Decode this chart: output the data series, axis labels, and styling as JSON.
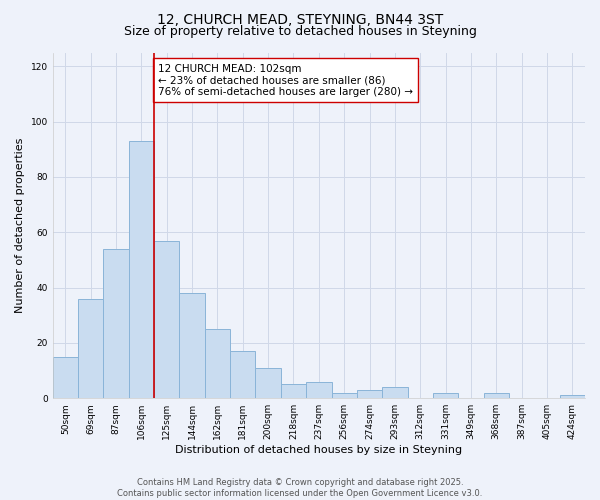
{
  "title": "12, CHURCH MEAD, STEYNING, BN44 3ST",
  "subtitle": "Size of property relative to detached houses in Steyning",
  "xlabel": "Distribution of detached houses by size in Steyning",
  "ylabel": "Number of detached properties",
  "categories": [
    "50sqm",
    "69sqm",
    "87sqm",
    "106sqm",
    "125sqm",
    "144sqm",
    "162sqm",
    "181sqm",
    "200sqm",
    "218sqm",
    "237sqm",
    "256sqm",
    "274sqm",
    "293sqm",
    "312sqm",
    "331sqm",
    "349sqm",
    "368sqm",
    "387sqm",
    "405sqm",
    "424sqm"
  ],
  "values": [
    15,
    36,
    54,
    93,
    57,
    38,
    25,
    17,
    11,
    5,
    6,
    2,
    3,
    4,
    0,
    2,
    0,
    2,
    0,
    0,
    1
  ],
  "bar_color": "#c9dcf0",
  "bar_edge_color": "#8ab4d8",
  "bar_edge_width": 0.7,
  "grid_color": "#d0d8e8",
  "background_color": "#eef2fa",
  "vline_x": 3.5,
  "vline_color": "#cc0000",
  "annotation_text": "12 CHURCH MEAD: 102sqm\n← 23% of detached houses are smaller (86)\n76% of semi-detached houses are larger (280) →",
  "annotation_box_color": "#ffffff",
  "annotation_box_edge_color": "#cc0000",
  "ylim": [
    0,
    125
  ],
  "yticks": [
    0,
    20,
    40,
    60,
    80,
    100,
    120
  ],
  "footer_text": "Contains HM Land Registry data © Crown copyright and database right 2025.\nContains public sector information licensed under the Open Government Licence v3.0.",
  "title_fontsize": 10,
  "subtitle_fontsize": 9,
  "axis_label_fontsize": 8,
  "tick_fontsize": 6.5,
  "annotation_fontsize": 7.5,
  "footer_fontsize": 6
}
